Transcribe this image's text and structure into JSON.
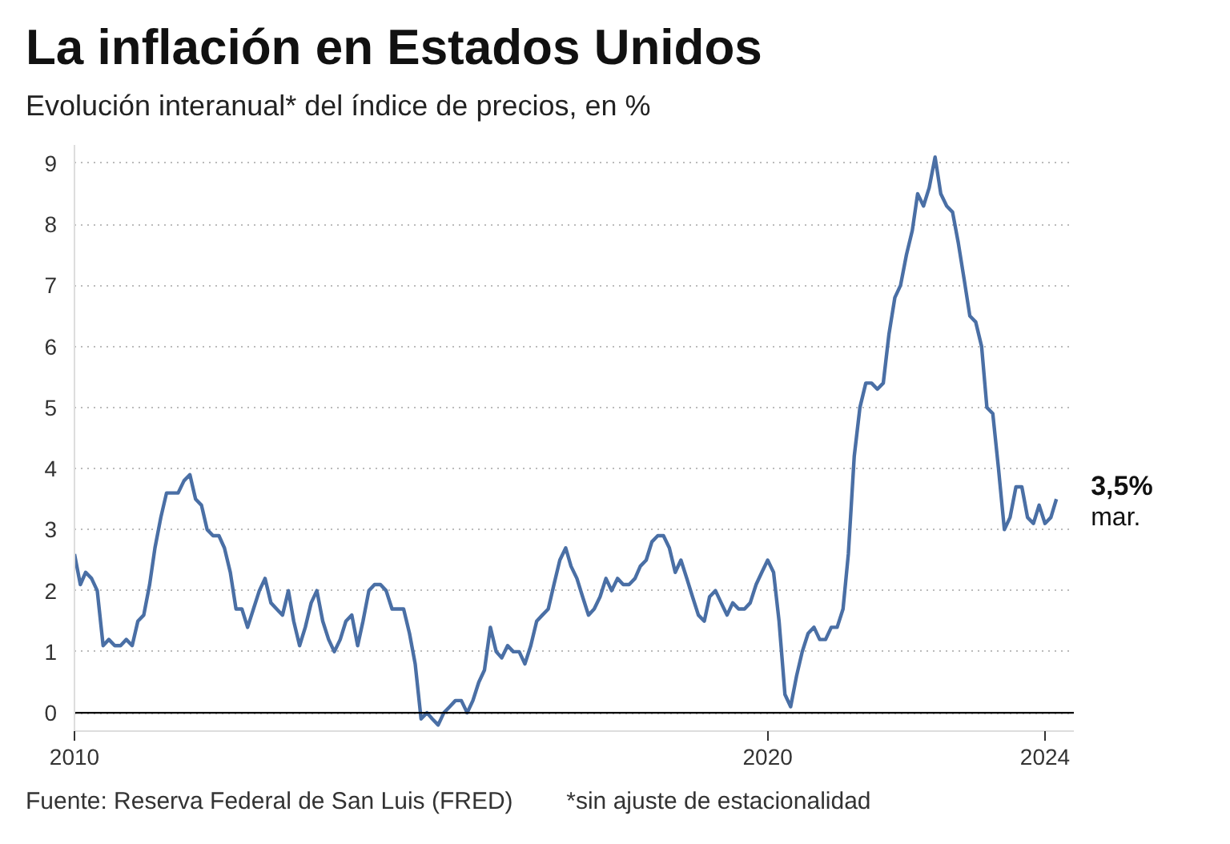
{
  "chart_data": {
    "type": "line",
    "title": "La inflación en Estados Unidos",
    "subtitle": "Evolución interanual* del índice de precios, en %",
    "x": [
      "2010-01",
      "2010-02",
      "2010-03",
      "2010-04",
      "2010-05",
      "2010-06",
      "2010-07",
      "2010-08",
      "2010-09",
      "2010-10",
      "2010-11",
      "2010-12",
      "2011-01",
      "2011-02",
      "2011-03",
      "2011-04",
      "2011-05",
      "2011-06",
      "2011-07",
      "2011-08",
      "2011-09",
      "2011-10",
      "2011-11",
      "2011-12",
      "2012-01",
      "2012-02",
      "2012-03",
      "2012-04",
      "2012-05",
      "2012-06",
      "2012-07",
      "2012-08",
      "2012-09",
      "2012-10",
      "2012-11",
      "2012-12",
      "2013-01",
      "2013-02",
      "2013-03",
      "2013-04",
      "2013-05",
      "2013-06",
      "2013-07",
      "2013-08",
      "2013-09",
      "2013-10",
      "2013-11",
      "2013-12",
      "2014-01",
      "2014-02",
      "2014-03",
      "2014-04",
      "2014-05",
      "2014-06",
      "2014-07",
      "2014-08",
      "2014-09",
      "2014-10",
      "2014-11",
      "2014-12",
      "2015-01",
      "2015-02",
      "2015-03",
      "2015-04",
      "2015-05",
      "2015-06",
      "2015-07",
      "2015-08",
      "2015-09",
      "2015-10",
      "2015-11",
      "2015-12",
      "2016-01",
      "2016-02",
      "2016-03",
      "2016-04",
      "2016-05",
      "2016-06",
      "2016-07",
      "2016-08",
      "2016-09",
      "2016-10",
      "2016-11",
      "2016-12",
      "2017-01",
      "2017-02",
      "2017-03",
      "2017-04",
      "2017-05",
      "2017-06",
      "2017-07",
      "2017-08",
      "2017-09",
      "2017-10",
      "2017-11",
      "2017-12",
      "2018-01",
      "2018-02",
      "2018-03",
      "2018-04",
      "2018-05",
      "2018-06",
      "2018-07",
      "2018-08",
      "2018-09",
      "2018-10",
      "2018-11",
      "2018-12",
      "2019-01",
      "2019-02",
      "2019-03",
      "2019-04",
      "2019-05",
      "2019-06",
      "2019-07",
      "2019-08",
      "2019-09",
      "2019-10",
      "2019-11",
      "2019-12",
      "2020-01",
      "2020-02",
      "2020-03",
      "2020-04",
      "2020-05",
      "2020-06",
      "2020-07",
      "2020-08",
      "2020-09",
      "2020-10",
      "2020-11",
      "2020-12",
      "2021-01",
      "2021-02",
      "2021-03",
      "2021-04",
      "2021-05",
      "2021-06",
      "2021-07",
      "2021-08",
      "2021-09",
      "2021-10",
      "2021-11",
      "2021-12",
      "2022-01",
      "2022-02",
      "2022-03",
      "2022-04",
      "2022-05",
      "2022-06",
      "2022-07",
      "2022-08",
      "2022-09",
      "2022-10",
      "2022-11",
      "2022-12",
      "2023-01",
      "2023-02",
      "2023-03",
      "2023-04",
      "2023-05",
      "2023-06",
      "2023-07",
      "2023-08",
      "2023-09",
      "2023-10",
      "2023-11",
      "2023-12",
      "2024-01",
      "2024-02",
      "2024-03"
    ],
    "series": [
      {
        "color": "#4a6fa5",
        "values": [
          2.6,
          2.1,
          2.3,
          2.2,
          2.0,
          1.1,
          1.2,
          1.1,
          1.1,
          1.2,
          1.1,
          1.5,
          1.6,
          2.1,
          2.7,
          3.2,
          3.6,
          3.6,
          3.6,
          3.8,
          3.9,
          3.5,
          3.4,
          3.0,
          2.9,
          2.9,
          2.7,
          2.3,
          1.7,
          1.7,
          1.4,
          1.7,
          2.0,
          2.2,
          1.8,
          1.7,
          1.6,
          2.0,
          1.5,
          1.1,
          1.4,
          1.8,
          2.0,
          1.5,
          1.2,
          1.0,
          1.2,
          1.5,
          1.6,
          1.1,
          1.5,
          2.0,
          2.1,
          2.1,
          2.0,
          1.7,
          1.7,
          1.7,
          1.3,
          0.8,
          -0.1,
          0.0,
          -0.1,
          -0.2,
          0.0,
          0.1,
          0.2,
          0.2,
          0.0,
          0.2,
          0.5,
          0.7,
          1.4,
          1.0,
          0.9,
          1.1,
          1.0,
          1.0,
          0.8,
          1.1,
          1.5,
          1.6,
          1.7,
          2.1,
          2.5,
          2.7,
          2.4,
          2.2,
          1.9,
          1.6,
          1.7,
          1.9,
          2.2,
          2.0,
          2.2,
          2.1,
          2.1,
          2.2,
          2.4,
          2.5,
          2.8,
          2.9,
          2.9,
          2.7,
          2.3,
          2.5,
          2.2,
          1.9,
          1.6,
          1.5,
          1.9,
          2.0,
          1.8,
          1.6,
          1.8,
          1.7,
          1.7,
          1.8,
          2.1,
          2.3,
          2.5,
          2.3,
          1.5,
          0.3,
          0.1,
          0.6,
          1.0,
          1.3,
          1.4,
          1.2,
          1.2,
          1.4,
          1.4,
          1.7,
          2.6,
          4.2,
          5.0,
          5.4,
          5.4,
          5.3,
          5.4,
          6.2,
          6.8,
          7.0,
          7.5,
          7.9,
          8.5,
          8.3,
          8.6,
          9.1,
          8.5,
          8.3,
          8.2,
          7.7,
          7.1,
          6.5,
          6.4,
          6.0,
          5.0,
          4.9,
          4.0,
          3.0,
          3.2,
          3.7,
          3.7,
          3.2,
          3.1,
          3.4,
          3.1,
          3.2,
          3.5
        ]
      }
    ],
    "xlim": [
      "2010-01",
      "2024-06"
    ],
    "xticks": [
      {
        "value": "2010-01",
        "label": "2010"
      },
      {
        "value": "2020-01",
        "label": "2020"
      },
      {
        "value": "2024-01",
        "label": "2024"
      }
    ],
    "ylim": [
      -0.3,
      9.3
    ],
    "yticks": [
      0,
      1,
      2,
      3,
      4,
      5,
      6,
      7,
      8,
      9
    ],
    "grid": "y",
    "marker": "none",
    "line_style": "solid",
    "ref_lines": [
      {
        "axis": "y",
        "value": 0,
        "color": "#000000"
      }
    ],
    "annotations": [
      {
        "text": "3,5%",
        "x": "2024-03",
        "y": 3.5
      },
      {
        "text": "mar.",
        "x": "2024-03",
        "y": 3.5
      },
      "Fuente: Reserva Federal de San Luis (FRED)",
      "*sin ajuste de estacionalidad"
    ]
  }
}
